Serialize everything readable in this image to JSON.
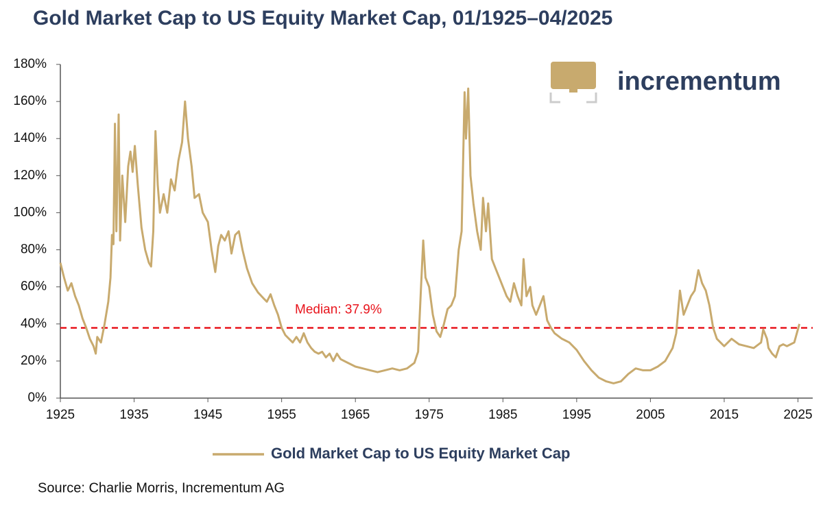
{
  "chart_data": {
    "type": "line",
    "title": "Gold Market Cap to US Equity Market Cap, 01/1925–04/2025",
    "source": "Source: Charlie Morris, Incrementum AG",
    "logo_text": "incrementum",
    "reference_line": {
      "value": 37.9,
      "label": "Median: 37.9%",
      "color": "#e8141c"
    },
    "xlim": [
      1925,
      2027
    ],
    "xticks": [
      1925,
      1935,
      1945,
      1955,
      1965,
      1975,
      1985,
      1995,
      2005,
      2015,
      2025
    ],
    "ylim": [
      0,
      180
    ],
    "yticks": [
      {
        "value": 0,
        "label": "0%"
      },
      {
        "value": 20,
        "label": "20%"
      },
      {
        "value": 40,
        "label": "40%"
      },
      {
        "value": 60,
        "label": "60%"
      },
      {
        "value": 80,
        "label": "80%"
      },
      {
        "value": 100,
        "label": "100%"
      },
      {
        "value": 120,
        "label": "120%"
      },
      {
        "value": 140,
        "label": "140%"
      },
      {
        "value": 160,
        "label": "160%"
      },
      {
        "value": 180,
        "label": "180%"
      }
    ],
    "x": [
      1925,
      1925.5,
      1926,
      1926.5,
      1927,
      1927.5,
      1928,
      1928.5,
      1929,
      1929.5,
      1929.8,
      1930,
      1930.5,
      1931,
      1931.5,
      1931.8,
      1932,
      1932.2,
      1932.4,
      1932.6,
      1932.9,
      1933.1,
      1933.4,
      1933.8,
      1934.2,
      1934.5,
      1934.8,
      1935.1,
      1935.5,
      1936,
      1936.5,
      1937,
      1937.3,
      1937.6,
      1937.9,
      1938.2,
      1938.5,
      1939,
      1939.5,
      1940,
      1940.5,
      1941,
      1941.5,
      1941.9,
      1942.3,
      1942.8,
      1943.2,
      1943.8,
      1944.3,
      1945,
      1945.5,
      1946,
      1946.4,
      1946.8,
      1947.3,
      1947.8,
      1948.2,
      1948.7,
      1949.2,
      1949.7,
      1950.3,
      1951,
      1951.8,
      1952.5,
      1953,
      1953.5,
      1954,
      1954.5,
      1955,
      1955.5,
      1956,
      1956.5,
      1957,
      1957.5,
      1958,
      1958.5,
      1959,
      1959.5,
      1960,
      1960.5,
      1961,
      1961.5,
      1962,
      1962.5,
      1963,
      1964,
      1965,
      1966,
      1967,
      1968,
      1969,
      1970,
      1971,
      1972,
      1973,
      1973.5,
      1973.9,
      1974.2,
      1974.5,
      1975,
      1975.5,
      1976,
      1976.5,
      1977,
      1977.5,
      1978,
      1978.5,
      1979,
      1979.4,
      1979.8,
      1980,
      1980.3,
      1980.6,
      1981,
      1981.5,
      1982,
      1982.3,
      1982.7,
      1983,
      1983.5,
      1984,
      1984.5,
      1985,
      1985.5,
      1986,
      1986.5,
      1987,
      1987.5,
      1987.8,
      1988.2,
      1988.7,
      1989,
      1989.5,
      1990,
      1990.5,
      1991,
      1991.5,
      1992,
      1993,
      1994,
      1995,
      1996,
      1997,
      1998,
      1999,
      2000,
      2001,
      2002,
      2003,
      2004,
      2005,
      2006,
      2007,
      2008,
      2008.5,
      2009,
      2009.5,
      2010,
      2010.5,
      2011,
      2011.5,
      2012,
      2012.5,
      2013,
      2013.5,
      2014,
      2015,
      2016,
      2017,
      2018,
      2019,
      2020,
      2020.3,
      2020.8,
      2021,
      2021.5,
      2022,
      2022.5,
      2023,
      2023.5,
      2024,
      2024.5,
      2025.2
    ],
    "series": [
      {
        "name": "Gold Market Cap to US Equity Market Cap",
        "color": "#c8aa6e",
        "values": [
          73,
          65,
          58,
          62,
          55,
          50,
          43,
          38,
          32,
          28,
          24,
          33,
          30,
          40,
          52,
          65,
          88,
          83,
          148,
          90,
          153,
          85,
          120,
          95,
          125,
          133,
          122,
          136,
          115,
          92,
          80,
          73,
          71,
          90,
          144,
          115,
          100,
          110,
          100,
          118,
          112,
          128,
          138,
          160,
          140,
          125,
          108,
          110,
          100,
          95,
          80,
          68,
          82,
          88,
          85,
          90,
          78,
          88,
          90,
          80,
          70,
          62,
          57,
          54,
          52,
          56,
          50,
          45,
          38,
          34,
          32,
          30,
          33,
          30,
          35,
          30,
          27,
          25,
          24,
          25,
          22,
          24,
          20,
          24,
          21,
          19,
          17,
          16,
          15,
          14,
          15,
          16,
          15,
          16,
          19,
          25,
          60,
          85,
          65,
          60,
          45,
          36,
          33,
          40,
          48,
          50,
          55,
          80,
          90,
          165,
          140,
          167,
          120,
          105,
          90,
          80,
          108,
          90,
          105,
          75,
          70,
          65,
          60,
          55,
          52,
          62,
          55,
          50,
          75,
          55,
          60,
          50,
          45,
          50,
          55,
          42,
          38,
          35,
          32,
          30,
          26,
          20,
          15,
          11,
          9,
          8,
          9,
          13,
          16,
          15,
          15,
          17,
          20,
          27,
          35,
          58,
          45,
          50,
          55,
          58,
          69,
          62,
          58,
          50,
          38,
          32,
          28,
          32,
          29,
          28,
          27,
          30,
          37,
          32,
          27,
          24,
          22,
          28,
          29,
          28,
          29,
          30,
          40
        ]
      }
    ]
  }
}
